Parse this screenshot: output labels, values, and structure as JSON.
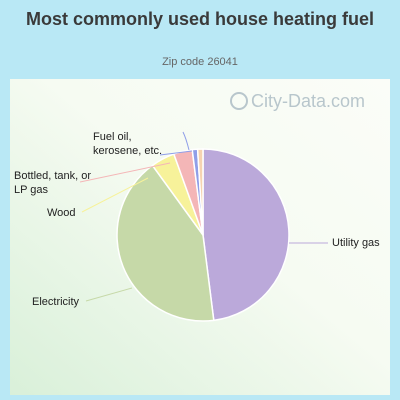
{
  "title": "Most commonly used house heating fuel",
  "subtitle": "Zip code 26041",
  "watermark": "City-Data.com",
  "chart_data": {
    "type": "pie",
    "title": "Most commonly used house heating fuel",
    "subtitle": "Zip code 26041",
    "slices": [
      {
        "label": "Utility gas",
        "value": 48.0,
        "color": "#bba9da"
      },
      {
        "label": "Electricity",
        "value": 42.0,
        "color": "#c6d9a8"
      },
      {
        "label": "Wood",
        "value": 4.5,
        "color": "#f7f29a"
      },
      {
        "label": "Bottled, tank, or LP gas",
        "value": 3.5,
        "color": "#f4b6b7"
      },
      {
        "label": "Fuel oil, kerosene, etc.",
        "value": 1.0,
        "color": "#8f9ee8"
      },
      {
        "label": "",
        "value": 1.0,
        "color": "#f6d3b0"
      }
    ],
    "label_lines": [
      [
        "Utility gas"
      ],
      [
        "Electricity"
      ],
      [
        "Wood"
      ],
      [
        "Bottled, tank, or",
        "LP gas"
      ],
      [
        "Fuel oil,",
        "kerosene, etc."
      ],
      []
    ]
  }
}
